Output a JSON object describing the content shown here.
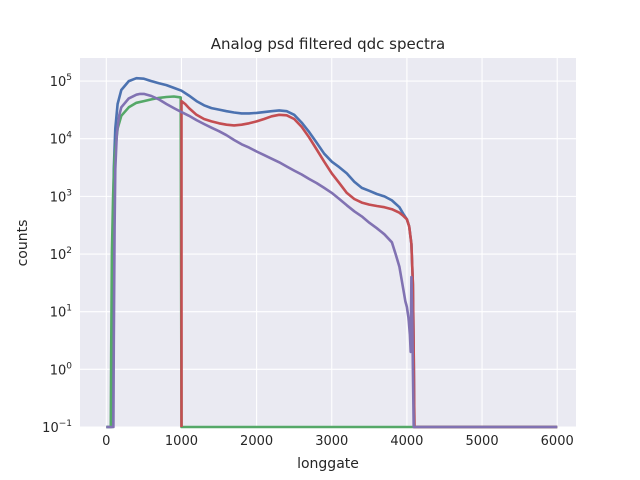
{
  "chart_data": {
    "type": "line",
    "title": "Analog psd filtered qdc spectra",
    "xlabel": "longgate",
    "ylabel": "counts",
    "xlim": [
      -350,
      6250
    ],
    "ylim_log10": [
      -1,
      5.4
    ],
    "yscale": "log",
    "grid": true,
    "legend": "none",
    "xticks": [
      0,
      1000,
      2000,
      3000,
      4000,
      5000,
      6000
    ],
    "xtick_labels": [
      "0",
      "1000",
      "2000",
      "3000",
      "4000",
      "5000",
      "6000"
    ],
    "yticks_log10": [
      -1,
      0,
      1,
      2,
      3,
      4,
      5
    ],
    "ytick_mantissa": "10",
    "ytick_exponents": [
      "−1",
      "0",
      "1",
      "2",
      "3",
      "4",
      "5"
    ],
    "colors": {
      "background": "#eaeaf2",
      "grid": "#ffffff",
      "text": "#262626"
    },
    "series": [
      {
        "color": "#4c72b0",
        "points": [
          [
            0,
            0.1
          ],
          [
            75,
            0.1
          ],
          [
            80,
            1.5
          ],
          [
            85,
            15
          ],
          [
            90,
            300
          ],
          [
            100,
            3000
          ],
          [
            120,
            15000
          ],
          [
            150,
            40000
          ],
          [
            200,
            70000
          ],
          [
            300,
            100000
          ],
          [
            400,
            112000
          ],
          [
            500,
            110000
          ],
          [
            600,
            100000
          ],
          [
            700,
            92000
          ],
          [
            800,
            85000
          ],
          [
            900,
            76000
          ],
          [
            1000,
            68000
          ],
          [
            1100,
            56000
          ],
          [
            1200,
            45000
          ],
          [
            1300,
            38000
          ],
          [
            1400,
            34000
          ],
          [
            1500,
            32000
          ],
          [
            1600,
            30000
          ],
          [
            1700,
            28500
          ],
          [
            1800,
            27500
          ],
          [
            1900,
            27500
          ],
          [
            2000,
            28000
          ],
          [
            2100,
            29000
          ],
          [
            2200,
            30000
          ],
          [
            2300,
            31000
          ],
          [
            2400,
            30000
          ],
          [
            2500,
            26000
          ],
          [
            2600,
            19000
          ],
          [
            2700,
            13000
          ],
          [
            2800,
            8500
          ],
          [
            2900,
            5500
          ],
          [
            3000,
            4000
          ],
          [
            3100,
            3200
          ],
          [
            3200,
            2500
          ],
          [
            3300,
            1800
          ],
          [
            3400,
            1400
          ],
          [
            3500,
            1250
          ],
          [
            3600,
            1100
          ],
          [
            3700,
            1000
          ],
          [
            3800,
            850
          ],
          [
            3900,
            650
          ],
          [
            3950,
            500
          ],
          [
            4000,
            400
          ],
          [
            4030,
            300
          ],
          [
            4060,
            150
          ],
          [
            4080,
            30
          ],
          [
            4090,
            2
          ],
          [
            4100,
            0.1
          ],
          [
            6000,
            0.1
          ]
        ]
      },
      {
        "color": "#55a868",
        "points": [
          [
            0,
            0.1
          ],
          [
            60,
            0.1
          ],
          [
            65,
            2
          ],
          [
            75,
            100
          ],
          [
            90,
            1000
          ],
          [
            110,
            5000
          ],
          [
            150,
            15000
          ],
          [
            200,
            25000
          ],
          [
            300,
            35000
          ],
          [
            400,
            42000
          ],
          [
            500,
            45000
          ],
          [
            600,
            48000
          ],
          [
            700,
            51000
          ],
          [
            800,
            53000
          ],
          [
            900,
            54000
          ],
          [
            990,
            52000
          ],
          [
            1000,
            0.1
          ],
          [
            6000,
            0.1
          ]
        ]
      },
      {
        "color": "#c44e52",
        "points": [
          [
            1000,
            0.1
          ],
          [
            1000,
            45000
          ],
          [
            1050,
            40000
          ],
          [
            1100,
            34000
          ],
          [
            1200,
            26000
          ],
          [
            1300,
            22000
          ],
          [
            1400,
            20000
          ],
          [
            1500,
            18500
          ],
          [
            1600,
            17500
          ],
          [
            1700,
            17000
          ],
          [
            1800,
            17500
          ],
          [
            1900,
            18500
          ],
          [
            2000,
            20000
          ],
          [
            2100,
            22000
          ],
          [
            2200,
            24500
          ],
          [
            2300,
            26000
          ],
          [
            2400,
            25500
          ],
          [
            2500,
            22000
          ],
          [
            2600,
            16000
          ],
          [
            2700,
            10500
          ],
          [
            2800,
            6500
          ],
          [
            2900,
            4000
          ],
          [
            3000,
            2500
          ],
          [
            3100,
            1700
          ],
          [
            3200,
            1150
          ],
          [
            3300,
            900
          ],
          [
            3400,
            780
          ],
          [
            3500,
            720
          ],
          [
            3600,
            680
          ],
          [
            3700,
            650
          ],
          [
            3800,
            600
          ],
          [
            3900,
            520
          ],
          [
            3950,
            460
          ],
          [
            4000,
            400
          ],
          [
            4030,
            300
          ],
          [
            4060,
            150
          ],
          [
            4080,
            30
          ],
          [
            4090,
            2
          ],
          [
            4100,
            0.1
          ],
          [
            6000,
            0.1
          ]
        ]
      },
      {
        "color": "#8172b2",
        "points": [
          [
            0,
            0.1
          ],
          [
            95,
            0.1
          ],
          [
            100,
            3
          ],
          [
            110,
            300
          ],
          [
            120,
            3000
          ],
          [
            140,
            12000
          ],
          [
            170,
            25000
          ],
          [
            200,
            35000
          ],
          [
            300,
            50000
          ],
          [
            400,
            58000
          ],
          [
            450,
            60000
          ],
          [
            500,
            60000
          ],
          [
            600,
            55000
          ],
          [
            700,
            48000
          ],
          [
            800,
            40000
          ],
          [
            900,
            34000
          ],
          [
            1000,
            29000
          ],
          [
            1100,
            25000
          ],
          [
            1200,
            21000
          ],
          [
            1300,
            18000
          ],
          [
            1400,
            15500
          ],
          [
            1500,
            13500
          ],
          [
            1600,
            11500
          ],
          [
            1700,
            9500
          ],
          [
            1800,
            8000
          ],
          [
            1900,
            7000
          ],
          [
            2000,
            6000
          ],
          [
            2100,
            5200
          ],
          [
            2200,
            4500
          ],
          [
            2300,
            3900
          ],
          [
            2400,
            3300
          ],
          [
            2500,
            2800
          ],
          [
            2600,
            2400
          ],
          [
            2700,
            2000
          ],
          [
            2800,
            1700
          ],
          [
            2900,
            1400
          ],
          [
            3000,
            1150
          ],
          [
            3100,
            900
          ],
          [
            3200,
            700
          ],
          [
            3300,
            550
          ],
          [
            3400,
            450
          ],
          [
            3500,
            350
          ],
          [
            3600,
            280
          ],
          [
            3700,
            220
          ],
          [
            3800,
            160
          ],
          [
            3850,
            100
          ],
          [
            3900,
            60
          ],
          [
            3950,
            25
          ],
          [
            3980,
            15
          ],
          [
            4000,
            12
          ],
          [
            4020,
            8
          ],
          [
            4040,
            4
          ],
          [
            4050,
            2
          ],
          [
            4060,
            40
          ],
          [
            4070,
            10
          ],
          [
            4080,
            1
          ],
          [
            4090,
            0.1
          ],
          [
            6000,
            0.1
          ]
        ]
      }
    ]
  }
}
